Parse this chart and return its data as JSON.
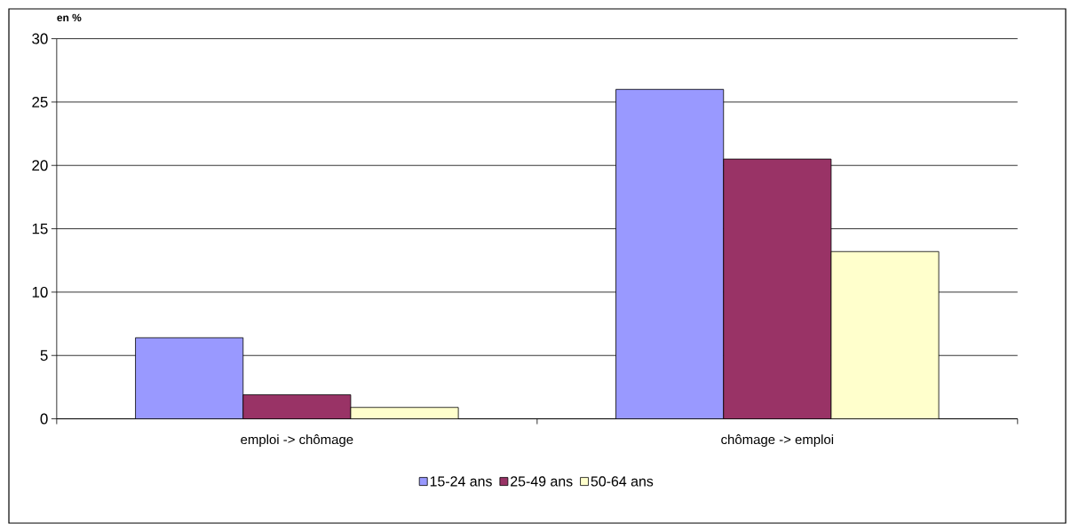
{
  "chart_data": {
    "type": "bar",
    "ylabel": "en %",
    "categories": [
      "emploi -> chômage",
      "chômage -> emploi"
    ],
    "series": [
      {
        "name": "15-24 ans",
        "color": "#9999ff",
        "values": [
          6.4,
          26.0
        ]
      },
      {
        "name": "25-49 ans",
        "color": "#993366",
        "values": [
          1.9,
          20.5
        ]
      },
      {
        "name": "50-64 ans",
        "color": "#ffffcc",
        "values": [
          0.9,
          13.2
        ]
      }
    ],
    "ylim": [
      0,
      30
    ],
    "yticks": [
      0,
      5,
      10,
      15,
      20,
      25,
      30
    ],
    "grid": "y",
    "legend": "bottom"
  }
}
